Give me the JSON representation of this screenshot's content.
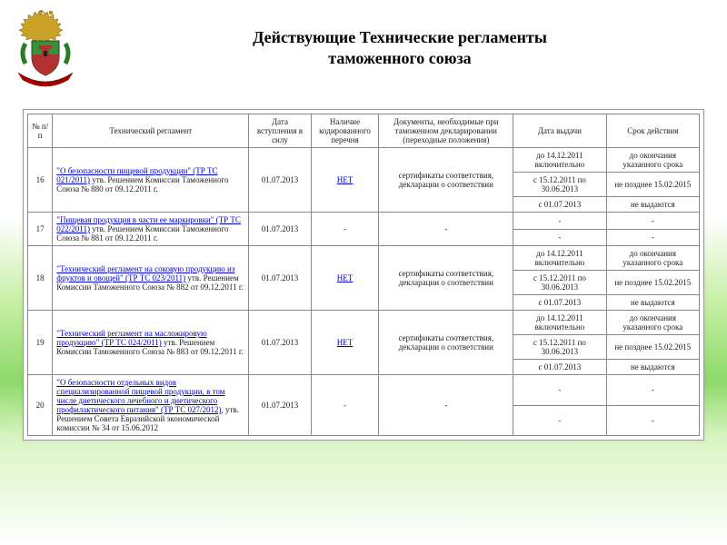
{
  "title_line1": "Действующие Технические регламенты",
  "title_line2": "таможенного союза",
  "logo": {
    "eagle_color": "#c9a227",
    "shield_top": "#3a8f3a",
    "shield_bottom": "#b33030",
    "ribbon": "#a00000"
  },
  "columns": {
    "num": "№ п/п",
    "reg": "Технический регламент",
    "date": "Дата вступления в силу",
    "code": "Наличие кодированного перечня",
    "docs": "Документы, необходимые при таможенном декларировании (переходные положения)",
    "issue": "Дата выдачи",
    "term": "Срок действия"
  },
  "common": {
    "net": "НЕТ",
    "dash": "-",
    "docs_text": "сертификаты соответствия, декларации о соответствии",
    "date_in": "01.07.2013",
    "issue_a": "до 14.12.2011 включительно",
    "issue_b": "с 15.12.2011 по 30.06.2013",
    "issue_c": "с 01.07.2013",
    "term_a": "до окончания указанного срока",
    "term_b": "не позднее 15.02.2015",
    "term_c": "не выдаются"
  },
  "rows": [
    {
      "num": "16",
      "reg_link": "\"О безопасности пищевой продукции\" (ТР ТС 021/2011)",
      "reg_rest": " утв. Решением Комиссии Таможенного Союза № 880 от 09.12.2011 г.",
      "has_three": true,
      "code_is_link": true
    },
    {
      "num": "17",
      "reg_link": "\"Пищевая продукция в части ее маркировки\" (ТР ТС 022/2011)",
      "reg_rest": " утв. Решением Комиссии Таможенного Союза № 881 от 09.12.2011 г.",
      "has_three": false,
      "code_is_link": false
    },
    {
      "num": "18",
      "reg_link": "\"Технический регламент на соковую продукцию из фруктов и овощей\" (ТР ТС 023/2011)",
      "reg_rest": " утв. Решением Комиссии Таможенного Союза № 882 от 09.12.2011 г.",
      "has_three": true,
      "code_is_link": true
    },
    {
      "num": "19",
      "reg_link": "\"Технический регламент на масложировую продукцию\" (ТР ТС 024/2011)",
      "reg_rest": " утв. Решением Комиссии Таможенного Союза № 883 от 09.12.2011 г.",
      "has_three": true,
      "code_is_link": true
    },
    {
      "num": "20",
      "reg_link": "\"О безопасности отдельных видов специализированной пищевой продукции, в том числе диетического лечебного и диетического профилактического питания\" (ТР ТС 027/2012)",
      "reg_rest": ", утв. Решением Совета Евразийской экономической комиссии № 34 от 15.06.2012",
      "has_three": false,
      "code_is_link": false
    }
  ]
}
